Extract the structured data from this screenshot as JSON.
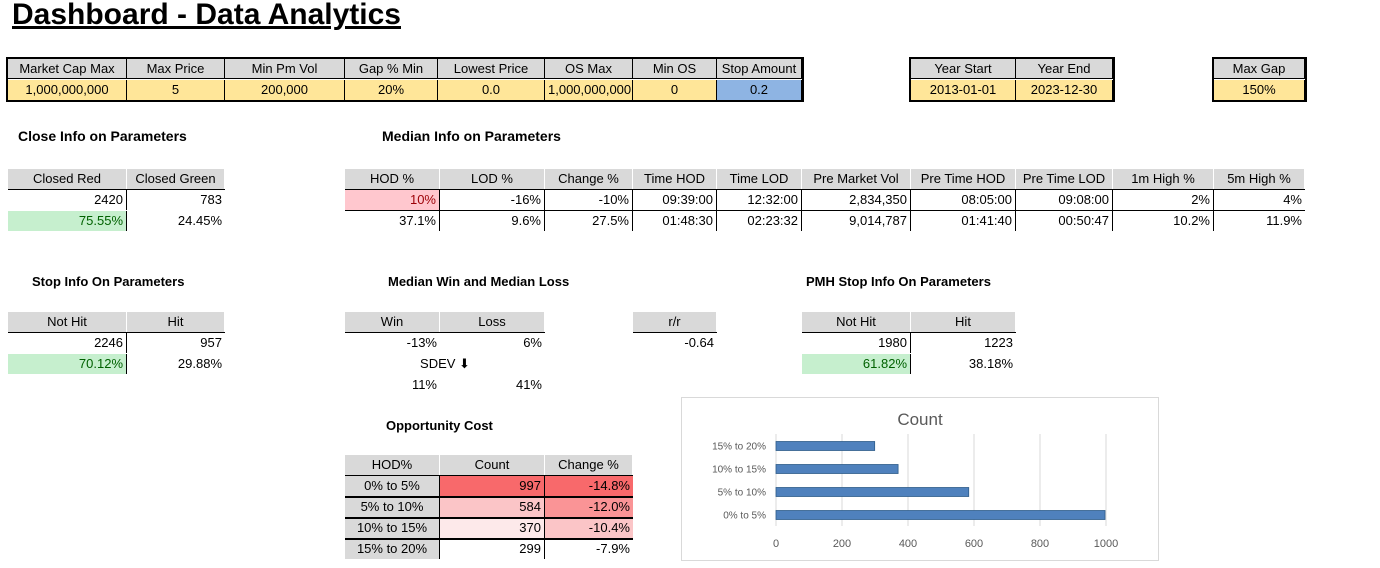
{
  "title": "Dashboard - Data Analytics",
  "params": {
    "headers": [
      "Market Cap Max",
      "Max Price",
      "Min Pm Vol",
      "Gap % Min",
      "Lowest Price",
      "OS Max",
      "Min OS",
      "Stop Amount"
    ],
    "values": [
      "1,000,000,000",
      "5",
      "200,000",
      "20%",
      "0.0",
      "1,000,000,000",
      "0",
      "0.2"
    ]
  },
  "years": {
    "headers": [
      "Year Start",
      "Year End"
    ],
    "values": [
      "2013-01-01",
      "2023-12-30"
    ]
  },
  "max_gap": {
    "headers": [
      "Max Gap"
    ],
    "values": [
      "150%"
    ]
  },
  "close_info": {
    "title": "Close Info on Parameters",
    "headers": [
      "Closed Red",
      "Closed Green"
    ],
    "rows": [
      [
        "2420",
        "783"
      ],
      [
        "75.55%",
        "24.45%"
      ]
    ]
  },
  "median_info": {
    "title": "Median Info on Parameters",
    "headers": [
      "HOD %",
      "LOD %",
      "Change %",
      "Time HOD",
      "Time LOD",
      "Pre Market Vol",
      "Pre Time HOD",
      "Pre Time LOD",
      "1m High %",
      "5m High %"
    ],
    "rows": [
      [
        "10%",
        "-16%",
        "-10%",
        "09:39:00",
        "12:32:00",
        "2,834,350",
        "08:05:00",
        "09:08:00",
        "2%",
        "4%"
      ],
      [
        "37.1%",
        "9.6%",
        "27.5%",
        "01:48:30",
        "02:23:32",
        "9,014,787",
        "01:41:40",
        "00:50:47",
        "10.2%",
        "11.9%"
      ]
    ]
  },
  "stop_info": {
    "title": "Stop Info On Parameters",
    "headers": [
      "Not Hit",
      "Hit"
    ],
    "rows": [
      [
        "2246",
        "957"
      ],
      [
        "70.12%",
        "29.88%"
      ]
    ]
  },
  "win_loss": {
    "title": "Median Win and Median Loss",
    "headers": [
      "Win",
      "Loss"
    ],
    "rows": [
      [
        "-13%",
        "6%"
      ],
      [
        "11%",
        "41%"
      ]
    ],
    "sdev_label": "SDEV ⬇"
  },
  "rr": {
    "headers": [
      "r/r"
    ],
    "rows": [
      [
        "-0.64"
      ]
    ]
  },
  "pmh_stop": {
    "title": "PMH Stop Info On Parameters",
    "headers": [
      "Not Hit",
      "Hit"
    ],
    "rows": [
      [
        "1980",
        "1223"
      ],
      [
        "61.82%",
        "38.18%"
      ]
    ]
  },
  "opportunity": {
    "title": "Opportunity Cost",
    "headers": [
      "HOD%",
      "Count",
      "Change %"
    ],
    "rows": [
      [
        "0% to 5%",
        "997",
        "-14.8%"
      ],
      [
        "5% to 10%",
        "584",
        "-12.0%"
      ],
      [
        "10% to 15%",
        "370",
        "-10.4%"
      ],
      [
        "15% to 20%",
        "299",
        "-7.9%"
      ]
    ]
  },
  "colors": {
    "header": "#d9d9d9",
    "input": "#ffe699",
    "stop": "#8eb4e3",
    "green": "#c6efce",
    "red": "#f8696b",
    "bar": "#4f81bd"
  },
  "chart_data": {
    "type": "bar",
    "orientation": "horizontal",
    "title": "Count",
    "categories": [
      "0% to 5%",
      "5% to 10%",
      "10% to 15%",
      "15% to 20%"
    ],
    "values": [
      997,
      584,
      370,
      299
    ],
    "xlim": [
      0,
      1000
    ],
    "xticks": [
      "0",
      "200",
      "400",
      "600",
      "800",
      "1000"
    ],
    "grid": true
  }
}
